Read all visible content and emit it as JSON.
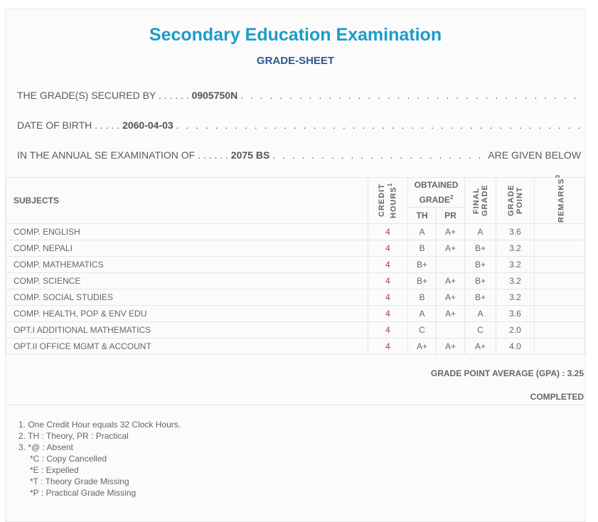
{
  "title": "Secondary Education Examination",
  "subtitle": "GRADE-SHEET",
  "info": {
    "secured_label": "THE GRADE(S) SECURED BY . . . . . .",
    "symbol": "0905750N",
    "dob_label": "DATE OF BIRTH . . . . .",
    "dob": "2060-04-03",
    "exam_label": "IN THE ANNUAL SE EXAMINATION OF . . . . . .",
    "exam_year": "2075 BS",
    "given_below": "ARE GIVEN BELOW"
  },
  "table": {
    "headers": {
      "subjects": "SUBJECTS",
      "credit": "CREDIT HOURS",
      "credit_sup": "1",
      "obtained": "OBTAINED GRADE",
      "obtained_sup": "2",
      "th": "TH",
      "pr": "PR",
      "final": "FINAL GRADE",
      "gp": "GRADE POINT",
      "remarks": "REMARKS",
      "remarks_sup": "3"
    },
    "rows": [
      {
        "subject": "COMP. ENGLISH",
        "credit": "4",
        "th": "A",
        "pr": "A+",
        "final": "A",
        "gp": "3.6",
        "remarks": ""
      },
      {
        "subject": "COMP. NEPALI",
        "credit": "4",
        "th": "B",
        "pr": "A+",
        "final": "B+",
        "gp": "3.2",
        "remarks": ""
      },
      {
        "subject": "COMP. MATHEMATICS",
        "credit": "4",
        "th": "B+",
        "pr": "",
        "final": "B+",
        "gp": "3.2",
        "remarks": ""
      },
      {
        "subject": "COMP. SCIENCE",
        "credit": "4",
        "th": "B+",
        "pr": "A+",
        "final": "B+",
        "gp": "3.2",
        "remarks": ""
      },
      {
        "subject": "COMP. SOCIAL STUDIES",
        "credit": "4",
        "th": "B",
        "pr": "A+",
        "final": "B+",
        "gp": "3.2",
        "remarks": ""
      },
      {
        "subject": "COMP. HEALTH, POP & ENV EDU",
        "credit": "4",
        "th": "A",
        "pr": "A+",
        "final": "A",
        "gp": "3.6",
        "remarks": ""
      },
      {
        "subject": "OPT.I ADDITIONAL MATHEMATICS",
        "credit": "4",
        "th": "C",
        "pr": "",
        "final": "C",
        "gp": "2.0",
        "remarks": ""
      },
      {
        "subject": "OPT.II OFFICE MGMT & ACCOUNT",
        "credit": "4",
        "th": "A+",
        "pr": "A+",
        "final": "A+",
        "gp": "4.0",
        "remarks": ""
      }
    ]
  },
  "gpa": "GRADE POINT AVERAGE (GPA) : 3.25",
  "status": "COMPLETED",
  "notes": [
    "1. One Credit Hour equals 32 Clock Hours.",
    "2. TH : Theory, PR : Practical",
    "3. *@ : Absent"
  ],
  "remark_codes": [
    "*C : Copy Cancelled",
    "*E : Expelled",
    "*T : Theory Grade Missing",
    "*P : Practical Grade Missing"
  ],
  "colors": {
    "title": "#1c9ccb",
    "subtitle": "#2d5a8c",
    "credit": "#b03a4a"
  }
}
